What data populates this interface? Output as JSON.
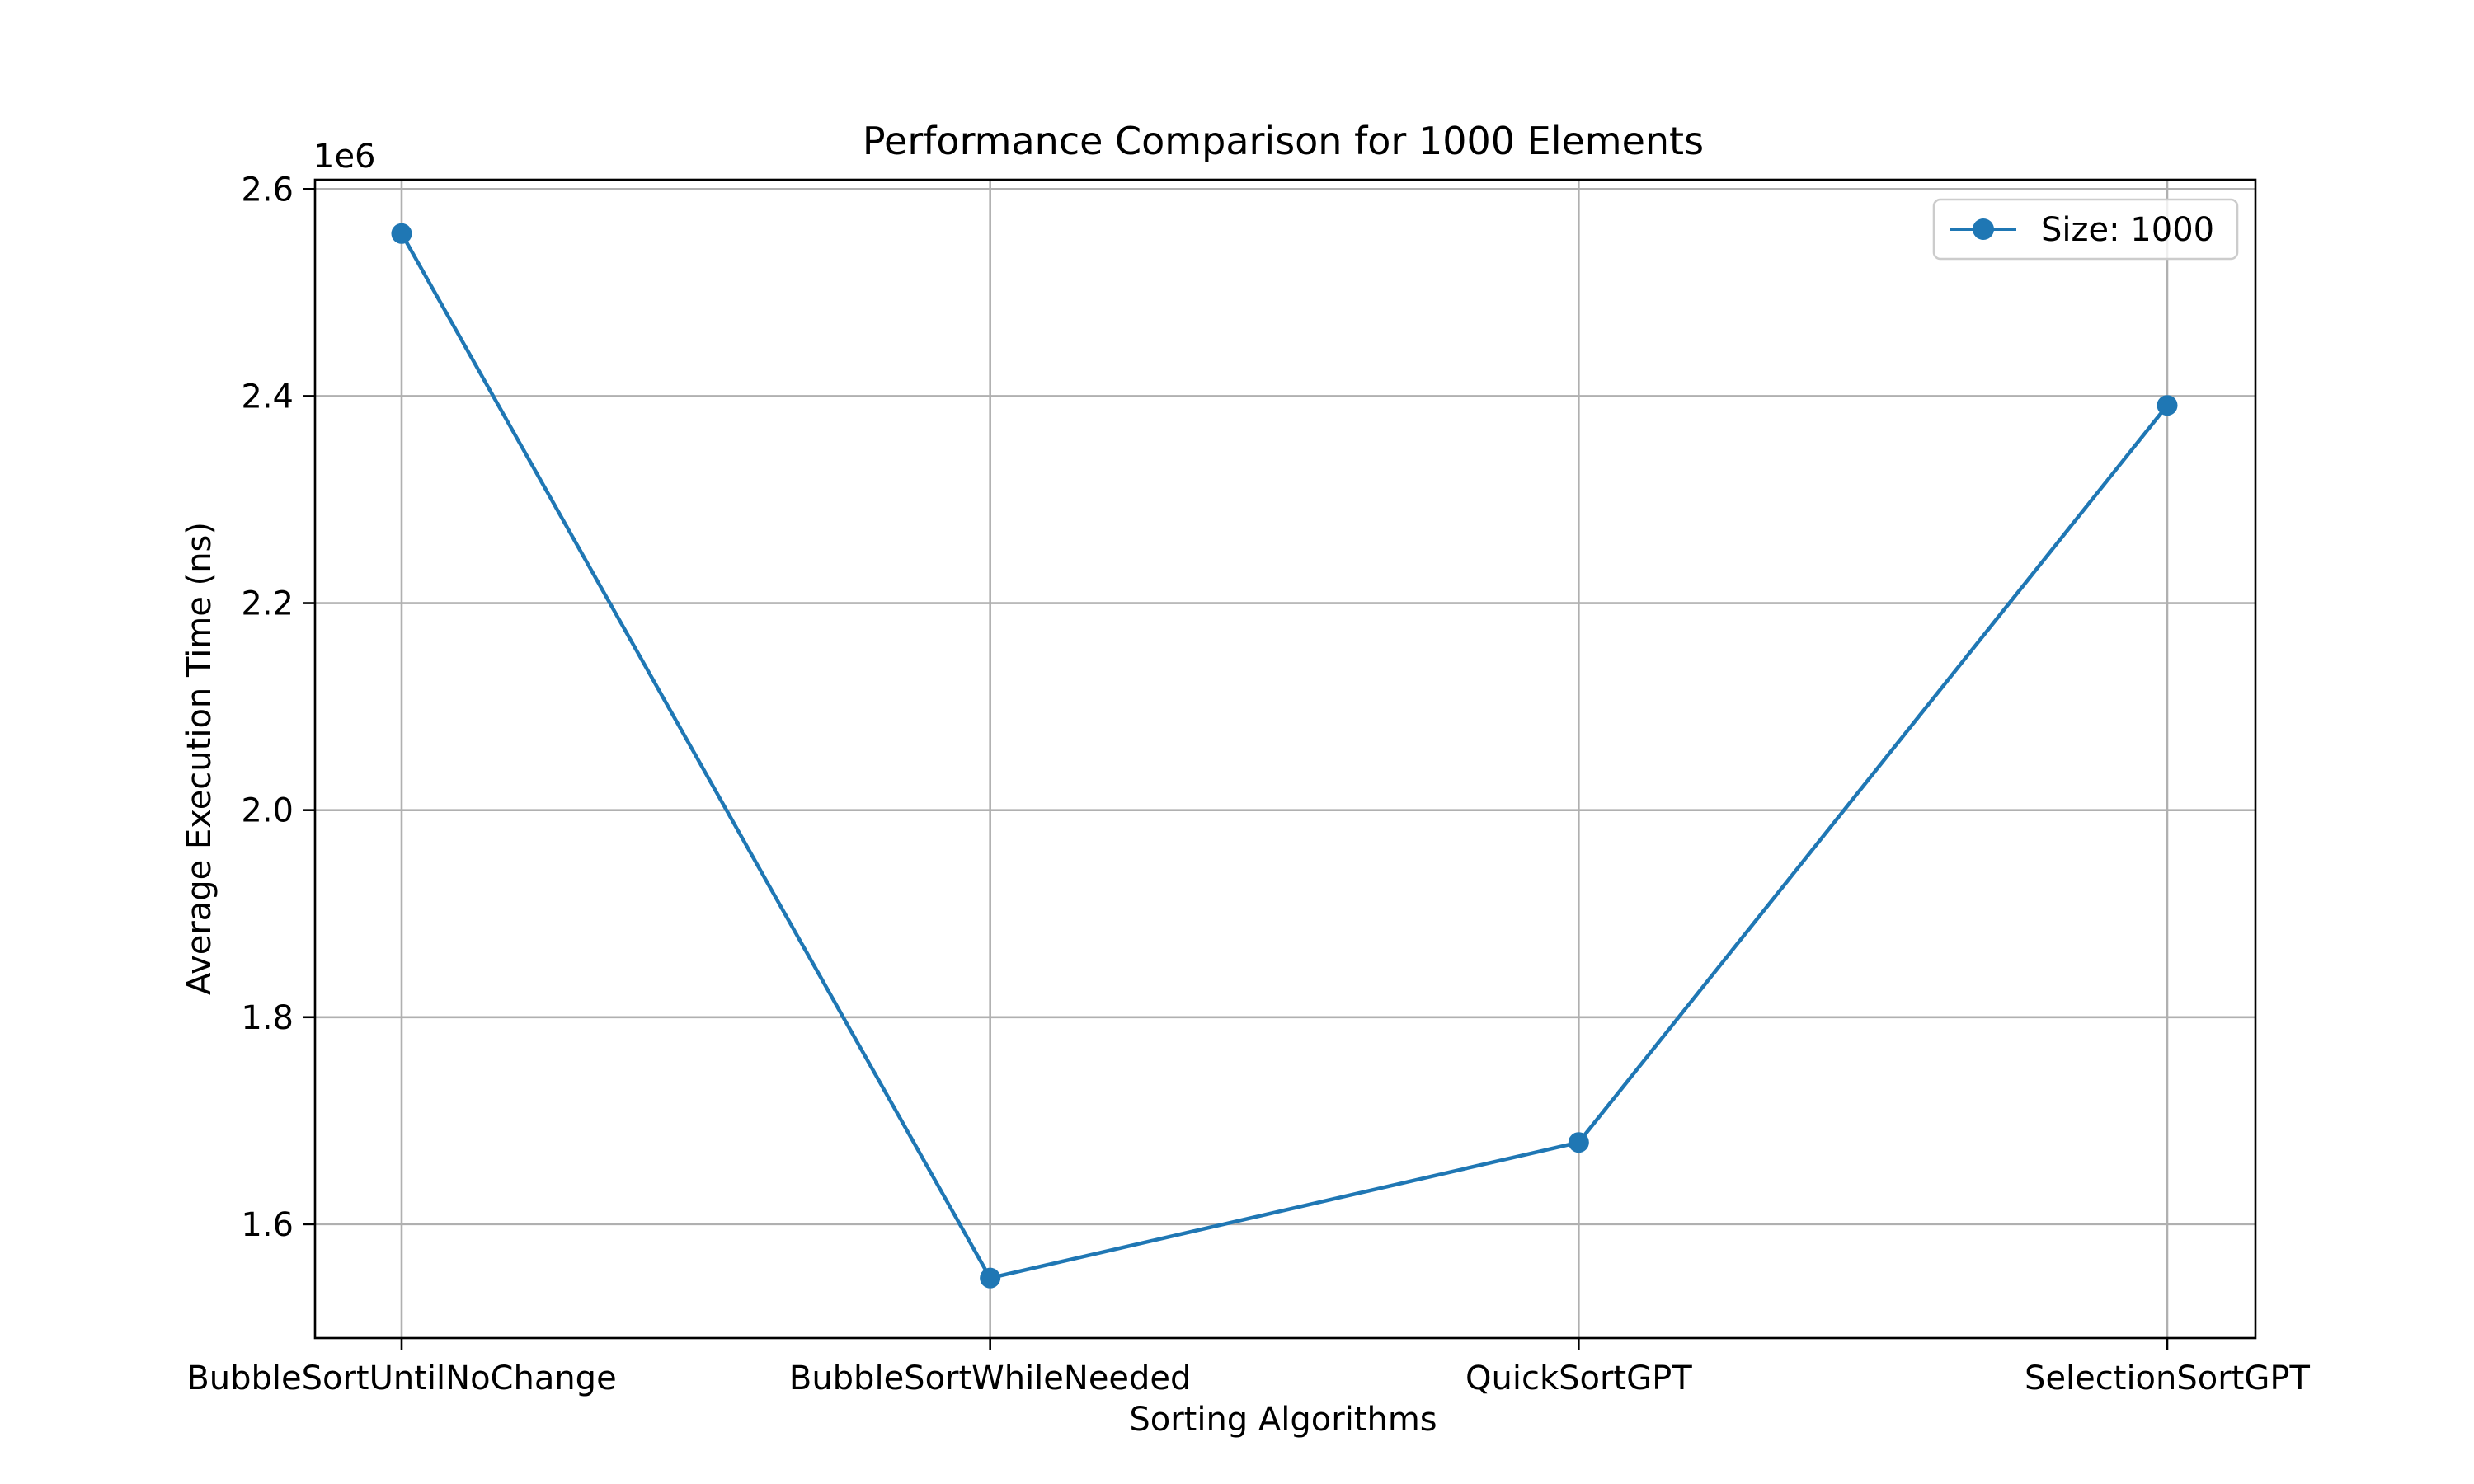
{
  "chart_data": {
    "type": "line",
    "title": "Performance Comparison for 1000 Elements",
    "xlabel": "Sorting Algorithms",
    "ylabel": "Average Execution Time (ns)",
    "y_offset_label": "1e6",
    "categories": [
      "BubbleSortUntilNoChange",
      "BubbleSortWhileNeeded",
      "QuickSortGPT",
      "SelectionSortGPT"
    ],
    "series": [
      {
        "name": "Size: 1000",
        "values": [
          2557000,
          1548000,
          1679000,
          2391000
        ],
        "color": "#1f77b4",
        "marker": "circle"
      }
    ],
    "ylim": [
      1490000,
      2609000
    ],
    "yticks": [
      1600000,
      1800000,
      2000000,
      2200000,
      2400000,
      2600000
    ],
    "ytick_labels": [
      "1.6",
      "1.8",
      "2.0",
      "2.2",
      "2.4",
      "2.6"
    ],
    "grid": true,
    "legend_position": "upper right"
  }
}
